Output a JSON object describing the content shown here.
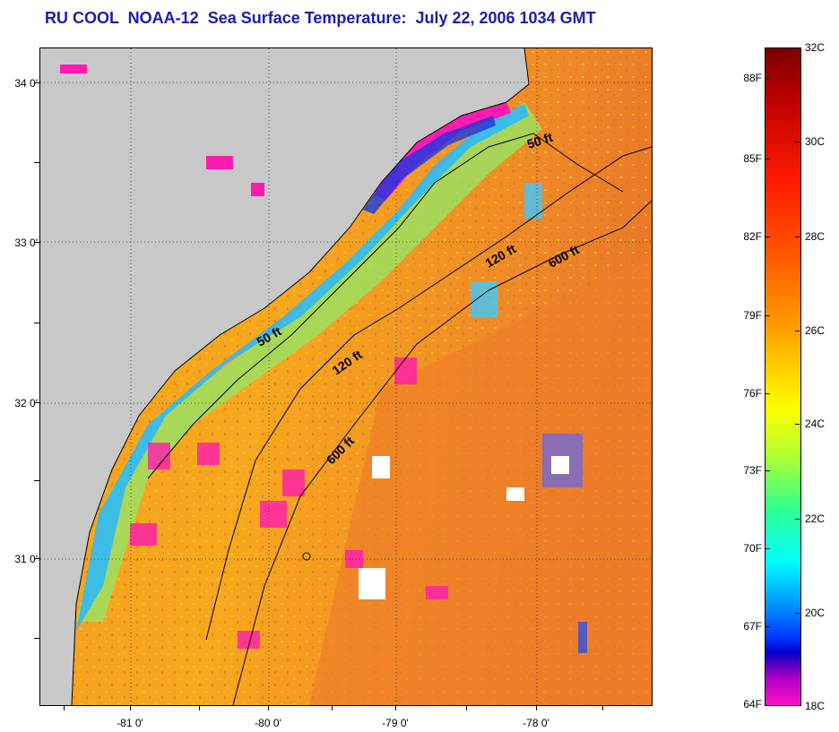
{
  "title": "RU COOL  NOAA-12  Sea Surface Temperature:  July 22, 2006 1034 GMT",
  "latitude_labels": [
    "34 0'",
    "33 0'",
    "32 0'",
    "31 0'"
  ],
  "longitude_labels": [
    "-81 0'",
    "-80 0'",
    "-79 0'",
    "-78 0'"
  ],
  "contour_labels": [
    "50 ft",
    "120 ft",
    "600 ft",
    "50 ft",
    "120 ft",
    "600 ft"
  ],
  "colorbar": {
    "fahrenheit_labels": [
      "88F",
      "85F",
      "82F",
      "79F",
      "76F",
      "73F",
      "70F",
      "67F",
      "64F"
    ],
    "celsius_labels": [
      "32C",
      "30C",
      "28C",
      "26C",
      "24C",
      "22C",
      "20C",
      "18C"
    ]
  },
  "colors": {
    "title": "#1c1cb0",
    "land": "#c8c8c8",
    "warm_sea": "#f08a28",
    "cool_coast": "#20c0ff",
    "cloud": "#ffffff"
  }
}
